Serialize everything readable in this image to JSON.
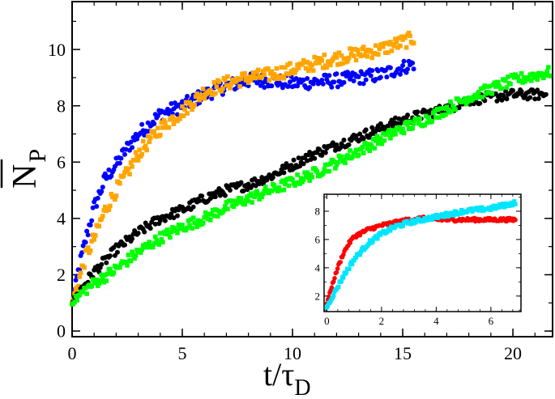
{
  "chart_data": [
    {
      "type": "scatter",
      "title": "",
      "xlabel": "t/τ_D",
      "ylabel": "N̄_P",
      "xlim": [
        0,
        21.8
      ],
      "ylim": [
        -0.2,
        11.7
      ],
      "xticks": [
        0,
        5,
        10,
        15,
        20
      ],
      "yticks": [
        0,
        2,
        4,
        6,
        8,
        10
      ],
      "xtick_labels": [
        "0",
        "5",
        "10",
        "15",
        "20"
      ],
      "ytick_labels": [
        "0",
        "2",
        "4",
        "6",
        "8",
        "10"
      ],
      "legend": "none",
      "series": [
        {
          "name": "blue",
          "color": "#0000ff",
          "marker": "circle",
          "curve": [
            [
              0,
              1.0
            ],
            [
              0.3,
              2.2
            ],
            [
              0.6,
              3.2
            ],
            [
              1,
              4.4
            ],
            [
              1.5,
              5.4
            ],
            [
              2,
              5.9
            ],
            [
              2.5,
              6.5
            ],
            [
              3,
              7.0
            ],
            [
              4,
              7.7
            ],
            [
              5,
              8.0
            ],
            [
              6,
              8.4
            ],
            [
              7,
              8.7
            ],
            [
              8,
              8.9
            ],
            [
              9,
              8.9
            ],
            [
              10,
              8.8
            ],
            [
              12,
              8.9
            ],
            [
              14,
              9.1
            ],
            [
              15.5,
              9.5
            ]
          ],
          "noise": 0.25
        },
        {
          "name": "orange",
          "color": "#ffa500",
          "marker": "square",
          "curve": [
            [
              0,
              1.0
            ],
            [
              0.3,
              1.8
            ],
            [
              0.6,
              2.6
            ],
            [
              1,
              3.3
            ],
            [
              1.5,
              4.3
            ],
            [
              2,
              5.0
            ],
            [
              2.5,
              5.6
            ],
            [
              3,
              6.3
            ],
            [
              4,
              7.2
            ],
            [
              5,
              7.8
            ],
            [
              6,
              8.5
            ],
            [
              7,
              8.8
            ],
            [
              8,
              9.0
            ],
            [
              9,
              9.1
            ],
            [
              10,
              9.3
            ],
            [
              12,
              9.7
            ],
            [
              14,
              10.0
            ],
            [
              15.5,
              10.4
            ]
          ],
          "noise": 0.25
        },
        {
          "name": "black",
          "color": "#000000",
          "marker": "circle",
          "curve": [
            [
              0,
              1.0
            ],
            [
              0.5,
              1.6
            ],
            [
              1,
              2.1
            ],
            [
              2,
              2.9
            ],
            [
              3,
              3.5
            ],
            [
              4,
              4.0
            ],
            [
              5,
              4.3
            ],
            [
              6,
              4.7
            ],
            [
              7,
              5.0
            ],
            [
              8,
              5.2
            ],
            [
              9,
              5.5
            ],
            [
              10,
              5.9
            ],
            [
              11,
              6.3
            ],
            [
              12,
              6.6
            ],
            [
              13,
              6.9
            ],
            [
              14,
              7.2
            ],
            [
              15,
              7.5
            ],
            [
              16,
              7.7
            ],
            [
              17,
              7.9
            ],
            [
              18,
              8.2
            ],
            [
              19,
              8.3
            ],
            [
              20,
              8.4
            ],
            [
              21.5,
              8.4
            ]
          ],
          "noise": 0.18
        },
        {
          "name": "green",
          "color": "#00ff00",
          "marker": "square",
          "curve": [
            [
              0,
              1.0
            ],
            [
              0.5,
              1.4
            ],
            [
              1,
              1.7
            ],
            [
              2,
              2.2
            ],
            [
              3,
              2.8
            ],
            [
              4,
              3.3
            ],
            [
              5,
              3.7
            ],
            [
              6,
              4.0
            ],
            [
              7,
              4.4
            ],
            [
              8,
              4.7
            ],
            [
              9,
              5.0
            ],
            [
              10,
              5.3
            ],
            [
              11,
              5.6
            ],
            [
              12,
              6.0
            ],
            [
              13,
              6.4
            ],
            [
              14,
              6.8
            ],
            [
              15,
              7.2
            ],
            [
              16,
              7.5
            ],
            [
              17,
              7.9
            ],
            [
              18,
              8.3
            ],
            [
              19,
              8.6
            ],
            [
              20,
              8.9
            ],
            [
              21.7,
              9.2
            ]
          ],
          "noise": 0.2
        }
      ]
    },
    {
      "type": "scatter",
      "title": "",
      "xlabel": "",
      "ylabel": "",
      "inset": true,
      "xlim": [
        -0.1,
        7.1
      ],
      "ylim": [
        0.9,
        9.2
      ],
      "xticks": [
        0,
        2,
        4,
        6
      ],
      "yticks": [
        2,
        4,
        6,
        8
      ],
      "xtick_labels": [
        "0",
        "2",
        "4",
        "6"
      ],
      "ytick_labels": [
        "2",
        "4",
        "6",
        "8"
      ],
      "legend": "none",
      "series": [
        {
          "name": "red",
          "color": "#ff0000",
          "marker": "circle",
          "curve": [
            [
              0,
              1.5
            ],
            [
              0.2,
              2.8
            ],
            [
              0.4,
              4.0
            ],
            [
              0.6,
              5.0
            ],
            [
              0.8,
              5.7
            ],
            [
              1.0,
              6.2
            ],
            [
              1.5,
              6.7
            ],
            [
              2.0,
              7.0
            ],
            [
              2.5,
              7.2
            ],
            [
              3.0,
              7.4
            ],
            [
              3.5,
              7.5
            ],
            [
              4,
              7.4
            ],
            [
              5,
              7.4
            ],
            [
              6,
              7.4
            ],
            [
              6.9,
              7.4
            ]
          ],
          "noise": 0.12
        },
        {
          "name": "cyan",
          "color": "#00e5ff",
          "marker": "square",
          "curve": [
            [
              0,
              1.2
            ],
            [
              0.3,
              2.3
            ],
            [
              0.6,
              3.4
            ],
            [
              1.0,
              4.6
            ],
            [
              1.5,
              5.7
            ],
            [
              2.0,
              6.4
            ],
            [
              2.5,
              6.9
            ],
            [
              3.0,
              7.2
            ],
            [
              4,
              7.6
            ],
            [
              5,
              8.0
            ],
            [
              6,
              8.2
            ],
            [
              6.9,
              8.6
            ]
          ],
          "noise": 0.15
        }
      ]
    }
  ]
}
